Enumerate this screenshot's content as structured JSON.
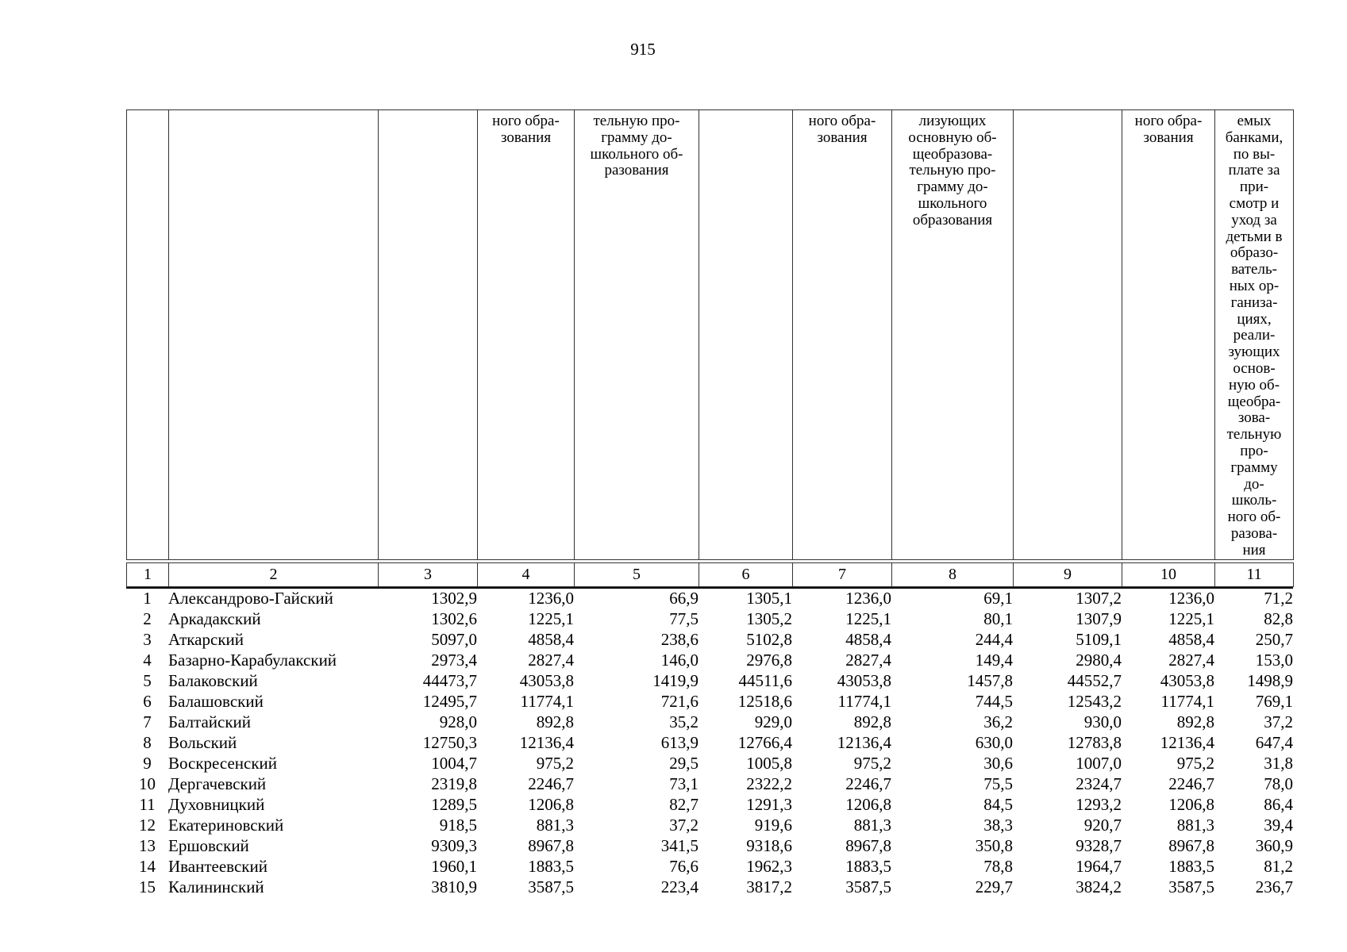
{
  "page": {
    "number": "915"
  },
  "table": {
    "header_cells": [
      "",
      "",
      "",
      "ного обра-\nзования",
      "тельную про-\nграмму до-\nшкольного об-\nразования",
      "",
      "ного обра-\nзования",
      "лизующих\nосновную об-\nщеобразова-\nтельную про-\nграмму до-\nшкольного\nобразования",
      "",
      "ного обра-\nзования",
      "емых\nбанками,\nпо вы-\nплате за\nпри-\nсмотр и\nуход за\nдетьми в\nобразо-\nватель-\nных ор-\nганиза-\nциях,\nреали-\nзующих\nоснов-\nную об-\nщеобра-\nзова-\nтельную\nпро-\nграмму\nдо-\nшколь-\nного об-\nразова-\nния"
    ],
    "column_numbers": [
      "1",
      "2",
      "3",
      "4",
      "5",
      "6",
      "7",
      "8",
      "9",
      "10",
      "11"
    ],
    "rows": [
      {
        "num": "1",
        "name": "Александрово-Гайский",
        "values": [
          "1302,9",
          "1236,0",
          "66,9",
          "1305,1",
          "1236,0",
          "69,1",
          "1307,2",
          "1236,0",
          "71,2"
        ]
      },
      {
        "num": "2",
        "name": "Аркадакский",
        "values": [
          "1302,6",
          "1225,1",
          "77,5",
          "1305,2",
          "1225,1",
          "80,1",
          "1307,9",
          "1225,1",
          "82,8"
        ]
      },
      {
        "num": "3",
        "name": "Аткарский",
        "values": [
          "5097,0",
          "4858,4",
          "238,6",
          "5102,8",
          "4858,4",
          "244,4",
          "5109,1",
          "4858,4",
          "250,7"
        ]
      },
      {
        "num": "4",
        "name": "Базарно-Карабулакский",
        "values": [
          "2973,4",
          "2827,4",
          "146,0",
          "2976,8",
          "2827,4",
          "149,4",
          "2980,4",
          "2827,4",
          "153,0"
        ]
      },
      {
        "num": "5",
        "name": "Балаковский",
        "values": [
          "44473,7",
          "43053,8",
          "1419,9",
          "44511,6",
          "43053,8",
          "1457,8",
          "44552,7",
          "43053,8",
          "1498,9"
        ]
      },
      {
        "num": "6",
        "name": "Балашовский",
        "values": [
          "12495,7",
          "11774,1",
          "721,6",
          "12518,6",
          "11774,1",
          "744,5",
          "12543,2",
          "11774,1",
          "769,1"
        ]
      },
      {
        "num": "7",
        "name": "Балтайский",
        "values": [
          "928,0",
          "892,8",
          "35,2",
          "929,0",
          "892,8",
          "36,2",
          "930,0",
          "892,8",
          "37,2"
        ]
      },
      {
        "num": "8",
        "name": "Вольский",
        "values": [
          "12750,3",
          "12136,4",
          "613,9",
          "12766,4",
          "12136,4",
          "630,0",
          "12783,8",
          "12136,4",
          "647,4"
        ]
      },
      {
        "num": "9",
        "name": "Воскресенский",
        "values": [
          "1004,7",
          "975,2",
          "29,5",
          "1005,8",
          "975,2",
          "30,6",
          "1007,0",
          "975,2",
          "31,8"
        ]
      },
      {
        "num": "10",
        "name": "Дергачевский",
        "values": [
          "2319,8",
          "2246,7",
          "73,1",
          "2322,2",
          "2246,7",
          "75,5",
          "2324,7",
          "2246,7",
          "78,0"
        ]
      },
      {
        "num": "11",
        "name": "Духовницкий",
        "values": [
          "1289,5",
          "1206,8",
          "82,7",
          "1291,3",
          "1206,8",
          "84,5",
          "1293,2",
          "1206,8",
          "86,4"
        ]
      },
      {
        "num": "12",
        "name": "Екатериновский",
        "values": [
          "918,5",
          "881,3",
          "37,2",
          "919,6",
          "881,3",
          "38,3",
          "920,7",
          "881,3",
          "39,4"
        ]
      },
      {
        "num": "13",
        "name": "Ершовский",
        "values": [
          "9309,3",
          "8967,8",
          "341,5",
          "9318,6",
          "8967,8",
          "350,8",
          "9328,7",
          "8967,8",
          "360,9"
        ]
      },
      {
        "num": "14",
        "name": "Ивантеевский",
        "values": [
          "1960,1",
          "1883,5",
          "76,6",
          "1962,3",
          "1883,5",
          "78,8",
          "1964,7",
          "1883,5",
          "81,2"
        ]
      },
      {
        "num": "15",
        "name": "Калининский",
        "values": [
          "3810,9",
          "3587,5",
          "223,4",
          "3817,2",
          "3587,5",
          "229,7",
          "3824,2",
          "3587,5",
          "236,7"
        ]
      }
    ]
  }
}
